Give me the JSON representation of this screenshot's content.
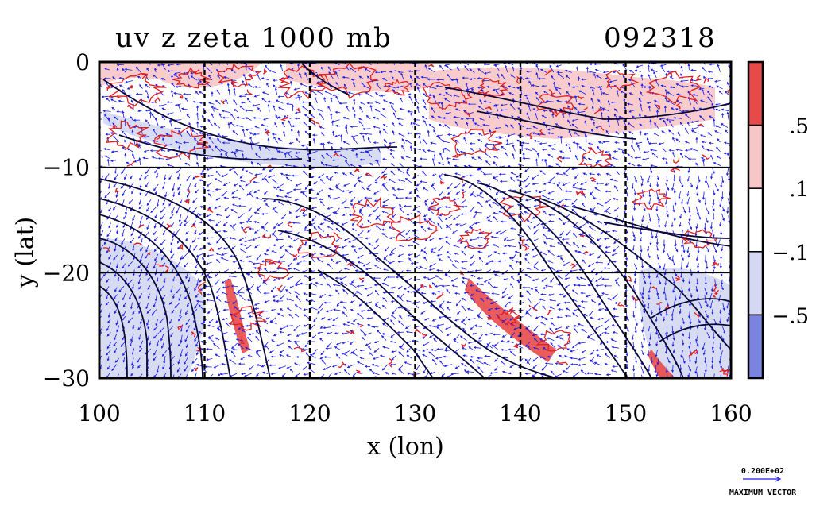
{
  "title": {
    "left": "uv z zeta 1000 mb",
    "right": "092318"
  },
  "chart_data": {
    "type": "heatmap",
    "xlabel": "x (lon)",
    "ylabel": "y (lat)",
    "xlim": [
      100,
      160
    ],
    "ylim": [
      -30,
      0
    ],
    "x_ticks": [
      "100",
      "110",
      "120",
      "130",
      "140",
      "150",
      "160"
    ],
    "y_ticks": [
      "0",
      "−10",
      "−20",
      "−30"
    ],
    "grid": true,
    "colorbar": {
      "levels": [
        ".5",
        ".1",
        "−.1",
        "−.5"
      ],
      "colors": [
        "#e84a4a",
        "#f7c6c6",
        "#ffffff",
        "#d4d8f2",
        "#7b83e0"
      ]
    },
    "contour_color": "#0a0a3a",
    "vector_color": "#1a1ae8",
    "zeta_positive_color": "#e02020",
    "max_vector": {
      "value": "0.200E+02",
      "label": "MAXIMUM VECTOR"
    }
  }
}
